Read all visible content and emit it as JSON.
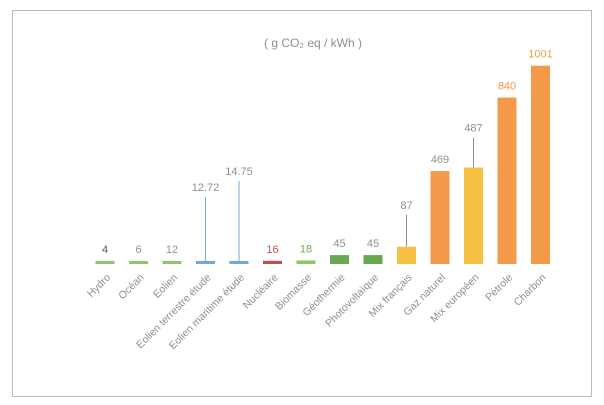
{
  "chart_data": {
    "type": "bar",
    "title": "( g CO₂ eq / kWh )",
    "xlabel": "",
    "ylabel": "",
    "ylim": [
      0,
      1050
    ],
    "grid": false,
    "legend": "none",
    "categories": [
      "Hydro",
      "Océan",
      "Eolien",
      "Eolien terrestre étude",
      "Eolien maritime étude",
      "Nucléaire",
      "Biomasse",
      "Géothermie",
      "Photovoltaïque",
      "Mix français",
      "Gaz naturel",
      "Mix européen",
      "Pétrole",
      "Charbon"
    ],
    "values": [
      4,
      6,
      12,
      12.72,
      14.75,
      16,
      18,
      45,
      45,
      87,
      469,
      487,
      840,
      1001
    ],
    "value_labels": [
      "4",
      "6",
      "12",
      "12.72",
      "14.75",
      "16",
      "18",
      "45",
      "45",
      "87",
      "469",
      "487",
      "840",
      "1001"
    ],
    "colors": [
      "#8dc66b",
      "#8dc66b",
      "#8dc66b",
      "#6fa8dc",
      "#6fa8dc",
      "#c0504d",
      "#8dc66b",
      "#6aa84f",
      "#6aa84f",
      "#f6c142",
      "#f39a4a",
      "#f6c142",
      "#f39a4a",
      "#f39a4a"
    ],
    "label_colors": [
      "#555555",
      "#8f8f8f",
      "#8f8f8f",
      "#8f8f8f",
      "#8f8f8f",
      "#c0504d",
      "#6aa84f",
      "#8f8f8f",
      "#8f8f8f",
      "#8f8f8f",
      "#8f8f8f",
      "#8f8f8f",
      "#f39a4a",
      "#f39a4a"
    ],
    "callout_lines": [
      false,
      false,
      false,
      true,
      true,
      false,
      false,
      false,
      false,
      true,
      false,
      true,
      false,
      false
    ],
    "callout_color": "#8f8f8f"
  }
}
